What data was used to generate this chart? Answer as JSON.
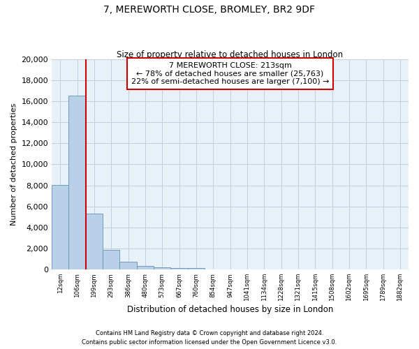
{
  "title1": "7, MEREWORTH CLOSE, BROMLEY, BR2 9DF",
  "title2": "Size of property relative to detached houses in London",
  "xlabel": "Distribution of detached houses by size in London",
  "ylabel": "Number of detached properties",
  "categories": [
    "12sqm",
    "106sqm",
    "199sqm",
    "293sqm",
    "386sqm",
    "480sqm",
    "573sqm",
    "667sqm",
    "760sqm",
    "854sqm",
    "947sqm",
    "1041sqm",
    "1134sqm",
    "1228sqm",
    "1321sqm",
    "1415sqm",
    "1508sqm",
    "1602sqm",
    "1695sqm",
    "1789sqm",
    "1882sqm"
  ],
  "values": [
    8050,
    16500,
    5300,
    1850,
    750,
    320,
    200,
    155,
    155,
    0,
    0,
    0,
    0,
    0,
    0,
    0,
    0,
    0,
    0,
    0,
    0
  ],
  "bar_color": "#b8d0e8",
  "bar_edge_color": "#6090b8",
  "property_line_color": "#cc0000",
  "annotation_line1": "7 MEREWORTH CLOSE: 213sqm",
  "annotation_line2": "← 78% of detached houses are smaller (25,763)",
  "annotation_line3": "22% of semi-detached houses are larger (7,100) →",
  "annotation_box_color": "#cc0000",
  "ylim": [
    0,
    20000
  ],
  "yticks": [
    0,
    2000,
    4000,
    6000,
    8000,
    10000,
    12000,
    14000,
    16000,
    18000,
    20000
  ],
  "footer1": "Contains HM Land Registry data © Crown copyright and database right 2024.",
  "footer2": "Contains public sector information licensed under the Open Government Licence v3.0.",
  "bg_color": "#ffffff",
  "plot_bg_color": "#e8f0f8",
  "grid_color": "#c0d0e0"
}
